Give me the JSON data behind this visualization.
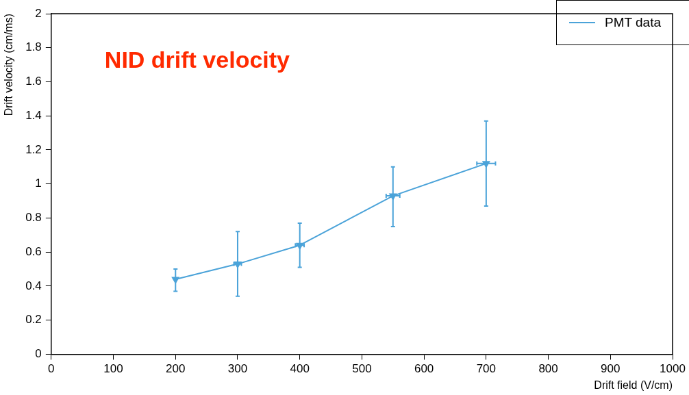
{
  "chart_data": {
    "type": "line",
    "title": "NID drift velocity",
    "xlabel": "Drift field (V/cm)",
    "ylabel": "Drift velocity (cm/ms)",
    "x": [
      200,
      300,
      400,
      550,
      700
    ],
    "series": [
      {
        "name": "PMT data",
        "color": "#4ba3d9",
        "values": [
          0.44,
          0.53,
          0.64,
          0.93,
          1.12
        ],
        "errors": [
          [
            0.37,
            0.5
          ],
          [
            0.34,
            0.72
          ],
          [
            0.51,
            0.77
          ],
          [
            0.75,
            1.1
          ],
          [
            0.87,
            1.37
          ]
        ],
        "xerrors": [
          null,
          6,
          7,
          11,
          15
        ]
      }
    ],
    "xlim": [
      0,
      1000
    ],
    "xticks": [
      0,
      100,
      200,
      300,
      400,
      500,
      600,
      700,
      800,
      900,
      1000
    ],
    "ylim": [
      0,
      2
    ],
    "yticks": [
      0,
      0.2,
      0.4,
      0.6,
      0.8,
      1,
      1.2,
      1.4,
      1.6,
      1.8,
      2
    ],
    "grid": false,
    "legend": "top right",
    "marker": "triangle",
    "line_style": "solid"
  }
}
